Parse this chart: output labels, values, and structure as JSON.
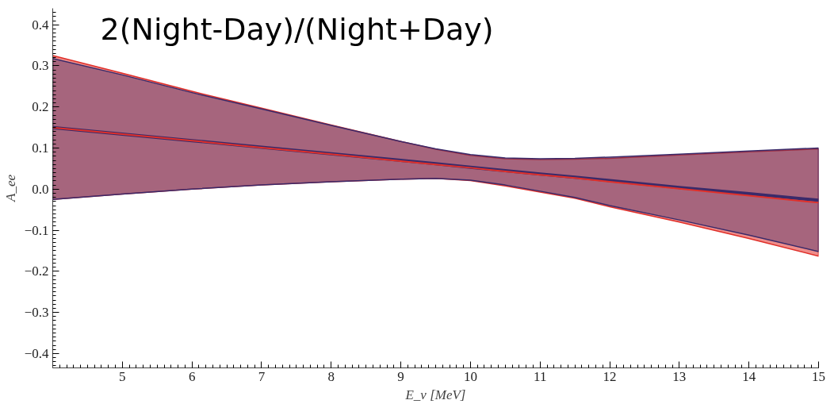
{
  "chart_data": {
    "type": "line",
    "title": "2(Night-Day)/(Night+Day)",
    "xlabel": "E_ν [MeV]",
    "ylabel": "A_ee",
    "x": [
      4,
      5,
      6,
      7,
      8,
      9,
      9.5,
      10,
      10.5,
      11,
      11.5,
      12,
      13,
      14,
      15
    ],
    "series": [
      {
        "color": "#e0302a",
        "values": [
          0.15,
          0.134,
          0.118,
          0.101,
          0.085,
          0.068,
          0.06,
          0.052,
          0.043,
          0.035,
          0.027,
          0.018,
          0.001,
          -0.016,
          -0.033
        ],
        "lower": [
          -0.025,
          -0.012,
          0.0,
          0.01,
          0.018,
          0.024,
          0.026,
          0.021,
          0.008,
          -0.007,
          -0.022,
          -0.043,
          -0.08,
          -0.12,
          -0.163
        ],
        "upper": [
          0.325,
          0.282,
          0.238,
          0.197,
          0.156,
          0.116,
          0.097,
          0.082,
          0.074,
          0.072,
          0.073,
          0.075,
          0.083,
          0.091,
          0.098
        ]
      },
      {
        "color": "#3a2a6a",
        "values": [
          0.15,
          0.134,
          0.118,
          0.102,
          0.086,
          0.07,
          0.062,
          0.053,
          0.045,
          0.037,
          0.029,
          0.021,
          0.004,
          -0.011,
          -0.027
        ],
        "lower": [
          -0.025,
          -0.012,
          0.0,
          0.01,
          0.018,
          0.024,
          0.026,
          0.022,
          0.01,
          -0.005,
          -0.02,
          -0.04,
          -0.075,
          -0.112,
          -0.152
        ],
        "upper": [
          0.318,
          0.278,
          0.235,
          0.195,
          0.155,
          0.116,
          0.098,
          0.084,
          0.076,
          0.074,
          0.075,
          0.078,
          0.085,
          0.093,
          0.1
        ]
      }
    ],
    "xlim": [
      4,
      15
    ],
    "ylim": [
      -0.435,
      0.44
    ],
    "xticks": [
      5,
      6,
      7,
      8,
      9,
      10,
      11,
      12,
      13,
      14,
      15
    ],
    "yticks": [
      0.4,
      0.3,
      0.2,
      0.1,
      {
        "value": 0,
        "label": "0.0"
      },
      -0.1,
      -0.2,
      -0.3,
      -0.4
    ],
    "grid": false
  }
}
